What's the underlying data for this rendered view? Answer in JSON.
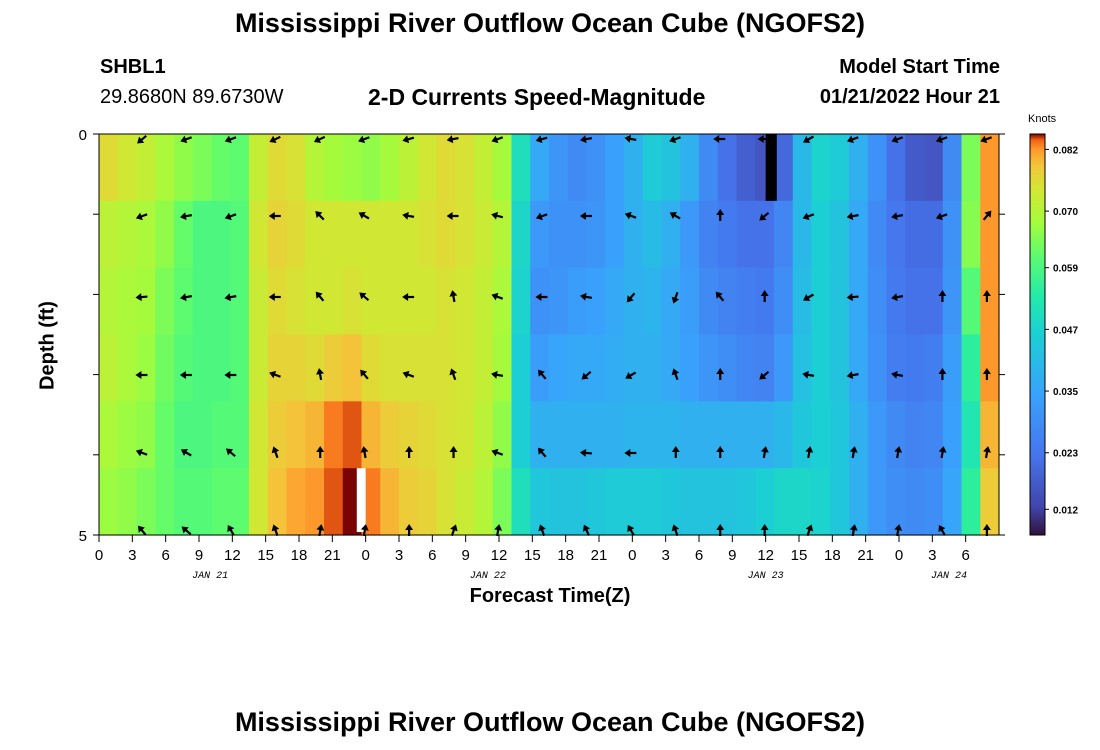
{
  "header": {
    "title": "Mississippi River Outflow Ocean Cube (NGOFS2)",
    "station": "SHBL1",
    "coords": "29.8680N  89.6730W",
    "subtitle": "2-D Currents Speed-Magnitude",
    "model_start_label": "Model Start Time",
    "model_start_value": "01/21/2022 Hour 21"
  },
  "footer": {
    "title": "Mississippi River Outflow Ocean Cube (NGOFS2)"
  },
  "chart_data": {
    "type": "heatmap",
    "xlabel": "Forecast Time(Z)",
    "ylabel": "Depth (ft)",
    "x_unit": "forecast hour",
    "xlim": [
      0,
      81
    ],
    "ylim": [
      5,
      0
    ],
    "y_tick_labels": [
      "0",
      "5"
    ],
    "x_tick_labels": [
      "0",
      "3",
      "6",
      "9",
      "12",
      "15",
      "18",
      "21",
      "0",
      "3",
      "6",
      "9",
      "12",
      "15",
      "18",
      "21",
      "0",
      "3",
      "6",
      "9",
      "12",
      "15",
      "18",
      "21",
      "0",
      "3",
      "6"
    ],
    "day_labels": [
      {
        "label": "JAN 21",
        "hour": 10
      },
      {
        "label": "JAN 22",
        "hour": 35
      },
      {
        "label": "JAN 23",
        "hour": 60
      },
      {
        "label": "JAN 24",
        "hour": 76.5
      }
    ],
    "colorbar": {
      "unit": "Knots",
      "ticks": [
        "0.082",
        "0.070",
        "0.059",
        "0.047",
        "0.035",
        "0.023",
        "0.012"
      ],
      "tick_values": [
        0.082,
        0.07,
        0.059,
        0.047,
        0.035,
        0.023,
        0.012
      ],
      "min": 0.007,
      "max": 0.085
    },
    "depth_levels": 6,
    "speed_rows": [
      [
        0.076,
        0.074,
        0.072,
        0.069,
        0.066,
        0.064,
        0.062,
        0.061,
        0.072,
        0.076,
        0.075,
        0.07,
        0.068,
        0.067,
        0.066,
        0.068,
        0.071,
        0.074,
        0.076,
        0.075,
        0.072,
        0.068,
        0.05,
        0.036,
        0.031,
        0.028,
        0.03,
        0.034,
        0.038,
        0.045,
        0.043,
        0.038,
        0.028,
        0.022,
        0.018,
        0.016,
        0.02,
        0.04,
        0.047,
        0.045,
        0.038,
        0.03,
        0.022,
        0.017,
        0.016,
        0.028,
        0.064,
        0.082
      ],
      [
        0.071,
        0.07,
        0.069,
        0.066,
        0.062,
        0.059,
        0.059,
        0.06,
        0.074,
        0.077,
        0.076,
        0.074,
        0.074,
        0.074,
        0.074,
        0.074,
        0.074,
        0.075,
        0.076,
        0.075,
        0.073,
        0.07,
        0.048,
        0.032,
        0.03,
        0.03,
        0.031,
        0.034,
        0.038,
        0.041,
        0.038,
        0.032,
        0.026,
        0.024,
        0.022,
        0.022,
        0.027,
        0.04,
        0.046,
        0.043,
        0.036,
        0.028,
        0.023,
        0.021,
        0.021,
        0.03,
        0.065,
        0.082
      ],
      [
        0.07,
        0.069,
        0.068,
        0.064,
        0.061,
        0.059,
        0.059,
        0.06,
        0.073,
        0.076,
        0.075,
        0.074,
        0.074,
        0.075,
        0.074,
        0.074,
        0.074,
        0.074,
        0.075,
        0.074,
        0.072,
        0.069,
        0.047,
        0.03,
        0.031,
        0.033,
        0.034,
        0.036,
        0.038,
        0.039,
        0.036,
        0.033,
        0.028,
        0.026,
        0.025,
        0.024,
        0.029,
        0.041,
        0.046,
        0.043,
        0.036,
        0.029,
        0.024,
        0.022,
        0.022,
        0.031,
        0.06,
        0.082
      ],
      [
        0.071,
        0.069,
        0.067,
        0.063,
        0.06,
        0.059,
        0.059,
        0.06,
        0.073,
        0.077,
        0.077,
        0.076,
        0.078,
        0.079,
        0.076,
        0.075,
        0.075,
        0.075,
        0.075,
        0.074,
        0.072,
        0.068,
        0.046,
        0.033,
        0.035,
        0.036,
        0.036,
        0.037,
        0.038,
        0.038,
        0.036,
        0.034,
        0.031,
        0.029,
        0.027,
        0.026,
        0.032,
        0.042,
        0.046,
        0.043,
        0.036,
        0.03,
        0.025,
        0.024,
        0.025,
        0.033,
        0.055,
        0.082
      ],
      [
        0.069,
        0.067,
        0.066,
        0.062,
        0.059,
        0.059,
        0.06,
        0.06,
        0.074,
        0.078,
        0.079,
        0.08,
        0.083,
        0.084,
        0.08,
        0.078,
        0.077,
        0.076,
        0.075,
        0.074,
        0.071,
        0.066,
        0.046,
        0.038,
        0.038,
        0.038,
        0.038,
        0.038,
        0.039,
        0.039,
        0.039,
        0.038,
        0.038,
        0.038,
        0.038,
        0.038,
        0.04,
        0.044,
        0.046,
        0.044,
        0.038,
        0.032,
        0.028,
        0.026,
        0.027,
        0.034,
        0.052,
        0.08
      ],
      [
        0.067,
        0.066,
        0.064,
        0.062,
        0.06,
        0.06,
        0.061,
        0.061,
        0.074,
        0.079,
        0.081,
        0.082,
        0.084,
        0.085,
        0.083,
        0.08,
        0.078,
        0.077,
        0.075,
        0.073,
        0.07,
        0.064,
        0.05,
        0.044,
        0.043,
        0.043,
        0.044,
        0.045,
        0.045,
        0.045,
        0.044,
        0.043,
        0.043,
        0.043,
        0.044,
        0.046,
        0.048,
        0.048,
        0.047,
        0.044,
        0.038,
        0.032,
        0.029,
        0.028,
        0.029,
        0.035,
        0.055,
        0.078
      ]
    ],
    "missing_cells": [
      {
        "row": 0,
        "hour_start": 60,
        "hour_end": 61
      },
      {
        "row": 5,
        "hour_start": 23.2,
        "hour_end": 24
      }
    ],
    "vector_hours": [
      4,
      8,
      12,
      16,
      20,
      24,
      28,
      32,
      36,
      40,
      44,
      48,
      52,
      56,
      60,
      64,
      68,
      72,
      76,
      80
    ],
    "vector_angles_deg": [
      [
        220,
        200,
        200,
        205,
        205,
        200,
        195,
        190,
        200,
        195,
        190,
        170,
        200,
        180,
        180,
        210,
        200,
        200,
        200,
        200
      ],
      [
        200,
        190,
        200,
        180,
        135,
        150,
        170,
        180,
        165,
        200,
        180,
        160,
        150,
        90,
        220,
        200,
        190,
        190,
        200,
        50
      ],
      [
        185,
        190,
        190,
        180,
        130,
        140,
        180,
        100,
        160,
        180,
        170,
        230,
        250,
        130,
        90,
        210,
        185,
        190,
        90,
        90
      ],
      [
        180,
        180,
        180,
        160,
        100,
        130,
        160,
        110,
        170,
        130,
        220,
        210,
        110,
        90,
        220,
        170,
        190,
        170,
        90,
        90
      ],
      [
        160,
        150,
        140,
        110,
        90,
        100,
        90,
        90,
        160,
        130,
        175,
        180,
        90,
        90,
        80,
        80,
        80,
        80,
        80,
        80
      ],
      [
        130,
        140,
        120,
        110,
        80,
        80,
        90,
        70,
        80,
        110,
        115,
        120,
        110,
        90,
        90,
        70,
        80,
        80,
        120,
        90
      ]
    ]
  }
}
